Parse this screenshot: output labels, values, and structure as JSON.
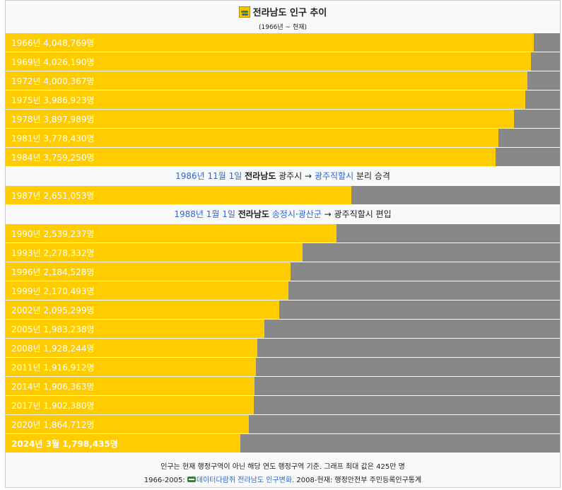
{
  "header": {
    "title": "전라남도 인구 추이",
    "subtitle": "(1966년 ~ 현재)"
  },
  "chart_data": {
    "type": "bar",
    "orientation": "horizontal",
    "xlim": [
      0,
      4250000
    ],
    "bar_color": "#ffcc00",
    "track_color": "#888888",
    "rows": [
      {
        "kind": "bar",
        "label": "1966년 4,048,769명",
        "value": 4048769
      },
      {
        "kind": "bar",
        "label": "1969년 4,026,190명",
        "value": 4026190
      },
      {
        "kind": "bar",
        "label": "1972년 4,000,367명",
        "value": 4000367
      },
      {
        "kind": "bar",
        "label": "1975년 3,986,923명",
        "value": 3986923
      },
      {
        "kind": "bar",
        "label": "1978년 3,897,989명",
        "value": 3897989
      },
      {
        "kind": "bar",
        "label": "1981년 3,778,430명",
        "value": 3778430
      },
      {
        "kind": "bar",
        "label": "1984년 3,759,250명",
        "value": 3759250
      },
      {
        "kind": "event",
        "parts": [
          {
            "text": "1986년 11월 1일",
            "style": "link"
          },
          {
            "text": " ",
            "style": "plain"
          },
          {
            "text": "전라남도",
            "style": "strong"
          },
          {
            "text": " 광주시 → ",
            "style": "plain"
          },
          {
            "text": "광주직할시",
            "style": "link"
          },
          {
            "text": " 분리 승격",
            "style": "plain"
          }
        ]
      },
      {
        "kind": "bar",
        "label": "1987년 2,651,053명",
        "value": 2651053
      },
      {
        "kind": "event",
        "parts": [
          {
            "text": "1988년 1월 1일",
            "style": "link"
          },
          {
            "text": " ",
            "style": "plain"
          },
          {
            "text": "전라남도",
            "style": "strong"
          },
          {
            "text": " ",
            "style": "plain"
          },
          {
            "text": "송정시",
            "style": "link"
          },
          {
            "text": "·",
            "style": "plain"
          },
          {
            "text": "광산군",
            "style": "link"
          },
          {
            "text": " → 광주직할시 편입",
            "style": "plain"
          }
        ]
      },
      {
        "kind": "bar",
        "label": "1990년 2,539,237명",
        "value": 2539237
      },
      {
        "kind": "bar",
        "label": "1993년 2,278,332명",
        "value": 2278332
      },
      {
        "kind": "bar",
        "label": "1996년 2,184,528명",
        "value": 2184528
      },
      {
        "kind": "bar",
        "label": "1999년 2,170,493명",
        "value": 2170493
      },
      {
        "kind": "bar",
        "label": "2002년 2,095,299명",
        "value": 2095299
      },
      {
        "kind": "bar",
        "label": "2005년 1,983,238명",
        "value": 1983238
      },
      {
        "kind": "bar",
        "label": "2008년 1,928,244명",
        "value": 1928244
      },
      {
        "kind": "bar",
        "label": "2011년 1,916,912명",
        "value": 1916912
      },
      {
        "kind": "bar",
        "label": "2014년 1,906,363명",
        "value": 1906363
      },
      {
        "kind": "bar",
        "label": "2017년 1,902,380명",
        "value": 1902380
      },
      {
        "kind": "bar",
        "label": "2020년 1,864,712명",
        "value": 1864712
      },
      {
        "kind": "bar",
        "label": "2024년 3월 1,798,435명",
        "value": 1798435,
        "bold": true
      }
    ]
  },
  "footer": {
    "note": "인구는 현재 행정구역이 아닌 해당 연도 행정구역 기준. 그래프 최대 값은 425만 명",
    "source_prefix": "1966-2005: ",
    "source_link": "데이터다람쥐 전라남도 인구변화",
    "source_suffix": ". 2008-현재: 행정안전부 주민등록인구통계"
  }
}
